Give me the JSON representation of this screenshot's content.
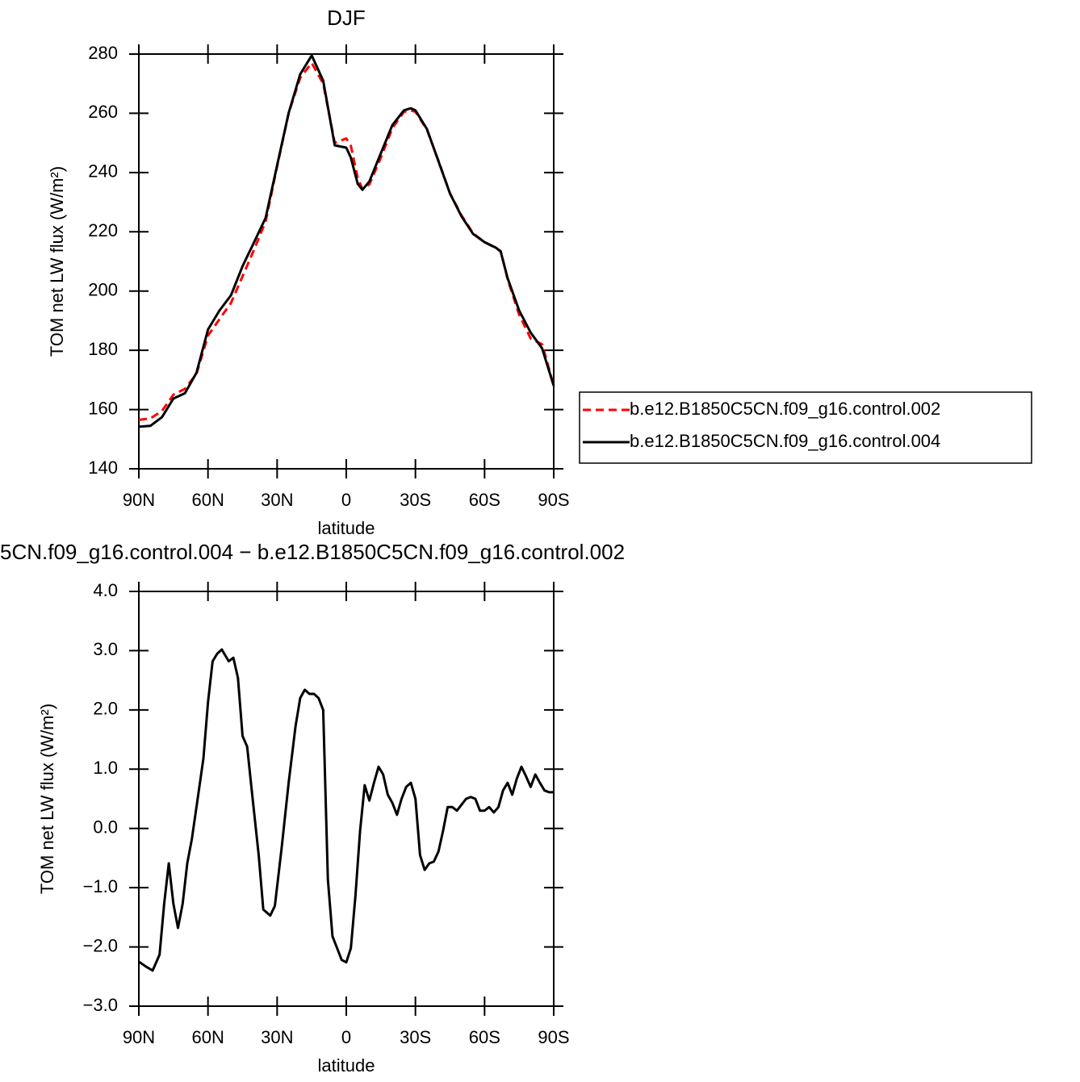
{
  "chart_data": [
    {
      "type": "line",
      "title": "DJF",
      "xlabel": "latitude",
      "ylabel": "TOM net LW flux (W/m²)",
      "xlim": [
        90,
        -90
      ],
      "ylim": [
        140,
        280
      ],
      "xticks": [
        {
          "value": 90,
          "label": "90N"
        },
        {
          "value": 60,
          "label": "60N"
        },
        {
          "value": 30,
          "label": "30N"
        },
        0,
        {
          "value": -30,
          "label": "30S"
        },
        {
          "value": -60,
          "label": "60S"
        },
        {
          "value": -90,
          "label": "90S"
        }
      ],
      "yticks": [
        140,
        160,
        180,
        200,
        220,
        240,
        260,
        280
      ],
      "legend": "right",
      "x": [
        90,
        85,
        80,
        75,
        70,
        65,
        60,
        55,
        50,
        45,
        40,
        35,
        30,
        25,
        20,
        15,
        10,
        5,
        0,
        -2,
        -5,
        -7,
        -10,
        -15,
        -20,
        -25,
        -28,
        -30,
        -35,
        -40,
        -45,
        -50,
        -55,
        -60,
        -65,
        -67,
        -70,
        -75,
        -80,
        -85,
        -90
      ],
      "series": [
        {
          "name": "b.e12.B1850C5CN.f09_g16.control.002",
          "color": "#ff0000",
          "dash": "dashed",
          "values": [
            156.5,
            157,
            159.5,
            165,
            167,
            172,
            185,
            190.5,
            196,
            205,
            214,
            223.5,
            242,
            260,
            272,
            277,
            270,
            250,
            251.5,
            249,
            238,
            234.5,
            236,
            245,
            255,
            260.5,
            261,
            260.5,
            254.5,
            244,
            233,
            225.5,
            219.5,
            216.5,
            214.5,
            213.5,
            204,
            192,
            184,
            182,
            168
          ]
        },
        {
          "name": "b.e12.B1850C5CN.f09_g16.control.004",
          "color": "#000000",
          "dash": "solid",
          "values": [
            154.2,
            154.5,
            157.4,
            163.7,
            165.5,
            172.4,
            187,
            193.4,
            198.6,
            208.4,
            216.5,
            224.7,
            242.4,
            260.1,
            273.2,
            279.5,
            271,
            249.2,
            248.4,
            245,
            236.1,
            234.2,
            237,
            246.5,
            256,
            261,
            261.7,
            261,
            254.7,
            243.8,
            232.9,
            225.2,
            219.3,
            216.5,
            214.6,
            213.3,
            204.3,
            193.4,
            186,
            180.6,
            168
          ]
        }
      ]
    },
    {
      "type": "line",
      "title": "5CN.f09_g16.control.004 − b.e12.B1850C5CN.f09_g16.control.002",
      "xlabel": "latitude",
      "ylabel": "TOM net LW flux (W/m²)",
      "xlim": [
        90,
        -90
      ],
      "ylim": [
        -3,
        4
      ],
      "xticks": [
        {
          "value": 90,
          "label": "90N"
        },
        {
          "value": 60,
          "label": "60N"
        },
        {
          "value": 30,
          "label": "30N"
        },
        0,
        {
          "value": -30,
          "label": "30S"
        },
        {
          "value": -60,
          "label": "60S"
        },
        {
          "value": -90,
          "label": "90S"
        }
      ],
      "yticks": [
        {
          "value": -3,
          "label": "−3.0"
        },
        {
          "value": -2,
          "label": "−2.0"
        },
        {
          "value": -1,
          "label": "−1.0"
        },
        {
          "value": 0,
          "label": "0.0"
        },
        {
          "value": 1,
          "label": "1.0"
        },
        {
          "value": 2,
          "label": "2.0"
        },
        {
          "value": 3,
          "label": "3.0"
        },
        {
          "value": 4,
          "label": "4.0"
        }
      ],
      "x": [
        90,
        87,
        84,
        81,
        79,
        77,
        75,
        73,
        71,
        69,
        67,
        65,
        62,
        60,
        58,
        56,
        54,
        51,
        49,
        47,
        45,
        43,
        41,
        38,
        36,
        33,
        31,
        28,
        25,
        22,
        20,
        18,
        16,
        14,
        12,
        10,
        8,
        6,
        4,
        2,
        0,
        -2,
        -4,
        -6,
        -8,
        -10,
        -12,
        -14,
        -16,
        -18,
        -20,
        -22,
        -24,
        -26,
        -28,
        -30,
        -32,
        -34,
        -36,
        -38,
        -40,
        -42,
        -44,
        -46,
        -48,
        -50,
        -52,
        -54,
        -56,
        -58,
        -60,
        -62,
        -64,
        -66,
        -68,
        -70,
        -72,
        -74,
        -76,
        -78,
        -80,
        -82,
        -84,
        -86,
        -88,
        -90
      ],
      "series": [
        {
          "color": "#000000",
          "dash": "solid",
          "values": [
            -2.25,
            -2.33,
            -2.4,
            -2.13,
            -1.27,
            -0.59,
            -1.27,
            -1.68,
            -1.27,
            -0.59,
            -0.18,
            0.36,
            1.18,
            2.13,
            2.82,
            2.95,
            3.02,
            2.82,
            2.88,
            2.54,
            1.56,
            1.38,
            0.64,
            -0.45,
            -1.37,
            -1.47,
            -1.31,
            -0.32,
            0.77,
            1.73,
            2.2,
            2.34,
            2.27,
            2.27,
            2.2,
            2.0,
            -0.86,
            -1.82,
            -2.02,
            -2.22,
            -2.26,
            -2.02,
            -1.13,
            -0.04,
            0.73,
            0.47,
            0.77,
            1.04,
            0.91,
            0.57,
            0.43,
            0.23,
            0.5,
            0.7,
            0.77,
            0.5,
            -0.45,
            -0.7,
            -0.59,
            -0.56,
            -0.39,
            -0.04,
            0.36,
            0.36,
            0.3,
            0.4,
            0.5,
            0.53,
            0.5,
            0.3,
            0.3,
            0.36,
            0.27,
            0.36,
            0.64,
            0.77,
            0.57,
            0.84,
            1.04,
            0.88,
            0.7,
            0.91,
            0.77,
            0.64,
            0.61,
            0.61
          ]
        }
      ]
    }
  ]
}
